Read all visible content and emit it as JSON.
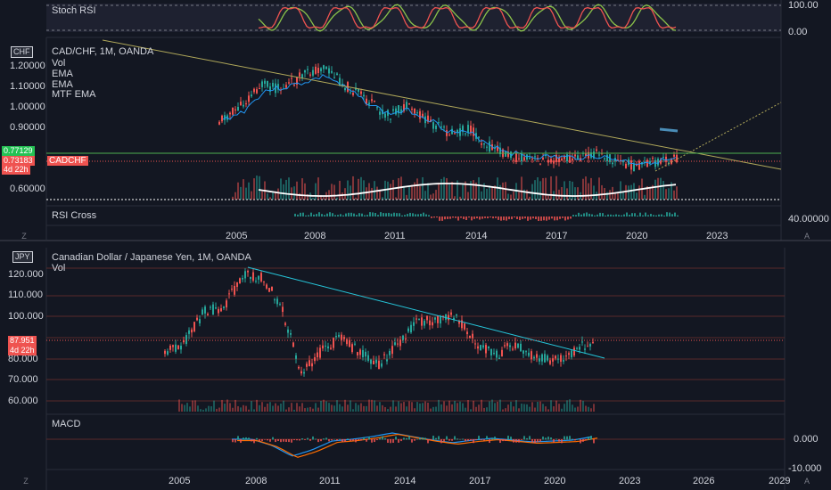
{
  "top_chart": {
    "stoch_rsi": {
      "label": "Stoch RSI",
      "levels": [
        "100.00",
        "0.00"
      ]
    },
    "main": {
      "axis_symbol": "CHF",
      "legend": [
        "CAD/CHF, 1M, OANDA",
        "Vol",
        "EMA",
        "EMA",
        "MTF EMA"
      ],
      "price_labels": [
        "1.20000",
        "1.10000",
        "1.00000",
        "0.90000",
        "0.60000"
      ],
      "price_tags": {
        "green": "0.77129",
        "red": "0.73183",
        "red_time": "4d 22h",
        "symbol": "CADCHF"
      }
    },
    "rsi_cross": {
      "label": "RSI Cross",
      "level": "40.00000"
    },
    "time_axis": [
      "2005",
      "2008",
      "2011",
      "2014",
      "2017",
      "2020",
      "2023"
    ],
    "corner_left": "Z",
    "corner_right": "A"
  },
  "bottom_chart": {
    "main": {
      "axis_symbol": "JPY",
      "legend": [
        "Canadian Dollar / Japanese Yen, 1M, OANDA",
        "Vol"
      ],
      "price_labels": [
        "120.000",
        "110.000",
        "100.000",
        "80.000",
        "70.000",
        "60.000"
      ],
      "price_tags": {
        "red": "87.951",
        "red_time": "4d 22h"
      }
    },
    "macd": {
      "label": "MACD",
      "levels": [
        "0.000",
        "-10.000"
      ]
    },
    "time_axis": [
      "2005",
      "2008",
      "2011",
      "2014",
      "2017",
      "2020",
      "2023",
      "2026",
      "2029"
    ],
    "corner_left": "Z",
    "corner_right": "A"
  },
  "colors": {
    "bg": "#131722",
    "up": "#26a69a",
    "down": "#ef5350",
    "grid": "#2a2e39",
    "text": "#d1d4dc"
  }
}
